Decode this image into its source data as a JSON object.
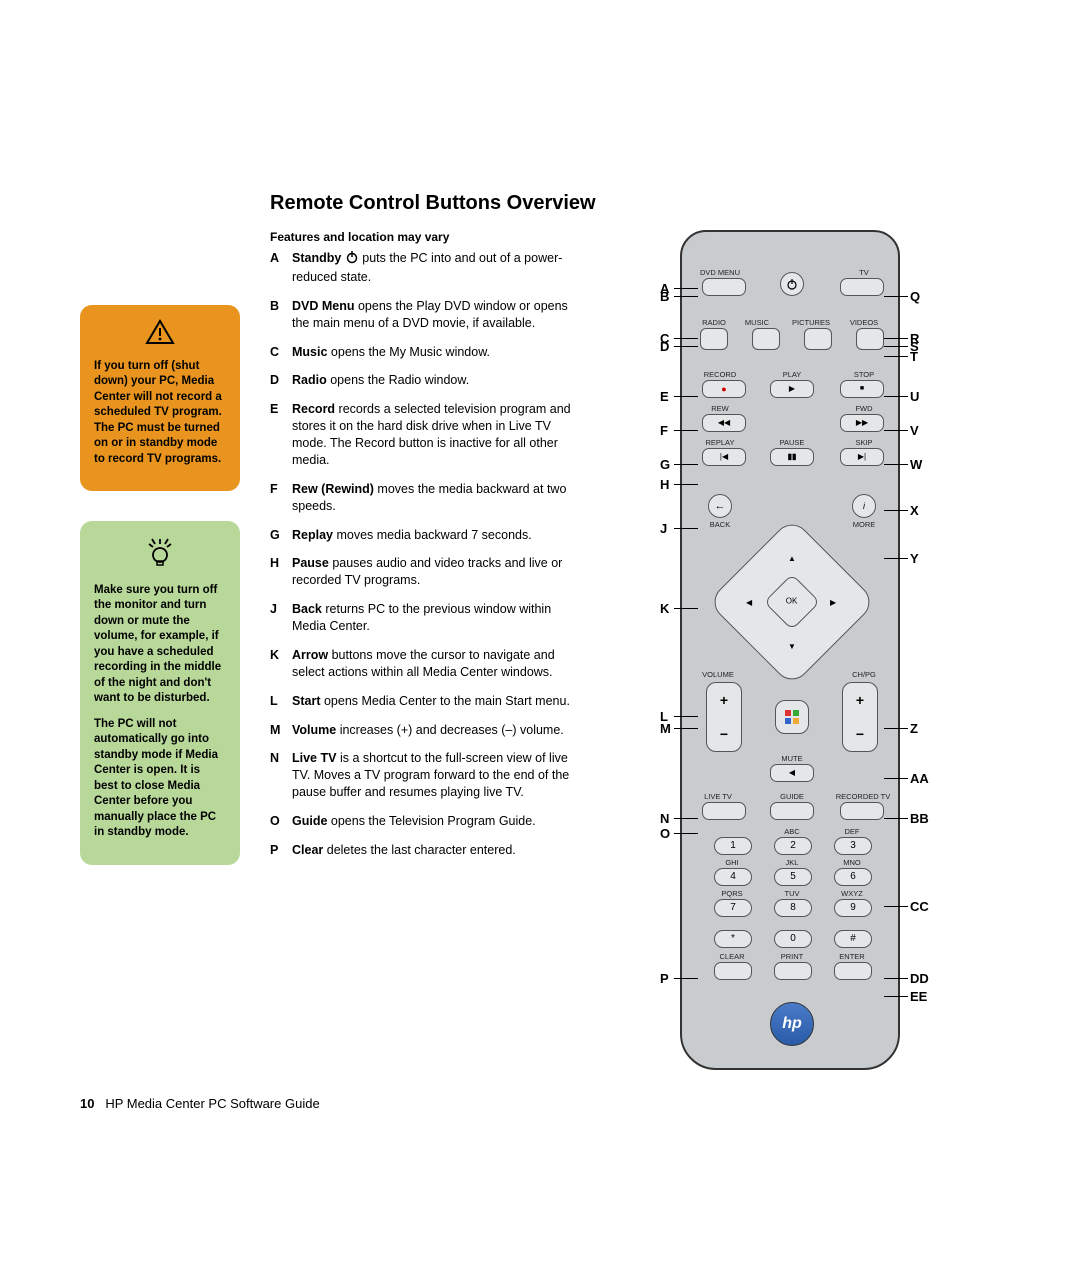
{
  "page": {
    "title": "Remote Control Buttons Overview",
    "subtitle": "Features and location may vary",
    "page_number": "10",
    "footer": "HP Media Center PC Software Guide"
  },
  "callouts": {
    "warn": "If you turn off (shut down) your PC, Media Center will not record a scheduled TV program. The PC must be turned on or in standby mode to record TV programs.",
    "tip1": "Make sure you turn off the monitor and turn down or mute the volume, for example, if you have a scheduled recording in the middle of the night and don't want to be disturbed.",
    "tip2": "The PC will not automatically go into standby mode if Media Center is open. It is best to close Media Center before you manually place the PC in standby mode."
  },
  "defs": [
    {
      "l": "A",
      "t": "Standby",
      "d": " puts the PC into and out of a power-reduced state.",
      "icon": true
    },
    {
      "l": "B",
      "t": "DVD Menu",
      "d": " opens the Play DVD window or opens the main menu of a DVD movie, if available."
    },
    {
      "l": "C",
      "t": "Music",
      "d": " opens the My Music window."
    },
    {
      "l": "D",
      "t": "Radio",
      "d": " opens the Radio window."
    },
    {
      "l": "E",
      "t": "Record",
      "d": " records a selected television program and stores it on the hard disk drive when in Live TV mode. The Record button is inactive for all other media."
    },
    {
      "l": "F",
      "t": "Rew (Rewind)",
      "d": " moves the media backward at two speeds."
    },
    {
      "l": "G",
      "t": "Replay",
      "d": " moves media backward 7 seconds."
    },
    {
      "l": "H",
      "t": "Pause",
      "d": " pauses audio and video tracks and live or recorded TV programs."
    },
    {
      "l": "J",
      "t": "Back",
      "d": " returns PC to the previous window within Media Center."
    },
    {
      "l": "K",
      "t": "Arrow",
      "d": " buttons move the cursor to navigate and select actions within all Media Center windows."
    },
    {
      "l": "L",
      "t": "Start",
      "d": " opens Media Center to the main Start menu."
    },
    {
      "l": "M",
      "t": "Volume",
      "d": " increases (+) and decreases (–) volume."
    },
    {
      "l": "N",
      "t": "Live TV",
      "d": " is a shortcut to the full-screen view of live TV. Moves a TV program forward to the end of the pause buffer and resumes playing live TV."
    },
    {
      "l": "O",
      "t": "Guide",
      "d": " opens the Television Program Guide."
    },
    {
      "l": "P",
      "t": "Clear",
      "d": " deletes the last character entered."
    }
  ],
  "remote": {
    "labels": {
      "dvdmenu": "DVD MENU",
      "tv": "TV",
      "radio": "RADIO",
      "music": "MUSIC",
      "pictures": "PICTURES",
      "videos": "VIDEOS",
      "record": "RECORD",
      "play": "PLAY",
      "stop": "STOP",
      "rew": "REW",
      "fwd": "FWD",
      "replay": "REPLAY",
      "pause": "PAUSE",
      "skip": "SKIP",
      "back": "BACK",
      "more": "MORE",
      "ok": "OK",
      "volume": "VOLUME",
      "chpg": "CH/PG",
      "mute": "MUTE",
      "livetv": "LIVE TV",
      "guide": "GUIDE",
      "recordedtv": "RECORDED TV",
      "abc": "ABC",
      "def": "DEF",
      "ghi": "GHI",
      "jkl": "JKL",
      "mno": "MNO",
      "pqrs": "PQRS",
      "tuv": "TUV",
      "wxyz": "WXYZ",
      "clear": "CLEAR",
      "print": "PRINT",
      "enter": "ENTER"
    },
    "numbers": [
      "1",
      "2",
      "3",
      "4",
      "5",
      "6",
      "7",
      "8",
      "9",
      "*",
      "0",
      "#"
    ],
    "logo": "hp"
  },
  "leads_left": [
    "A",
    "B",
    "C",
    "D",
    "E",
    "F",
    "G",
    "H",
    "J",
    "K",
    "L",
    "M",
    "N",
    "O",
    "P"
  ],
  "leads_right": [
    "Q",
    "R",
    "S",
    "T",
    "U",
    "V",
    "W",
    "X",
    "Y",
    "Z",
    "AA",
    "BB",
    "CC",
    "DD",
    "EE"
  ]
}
